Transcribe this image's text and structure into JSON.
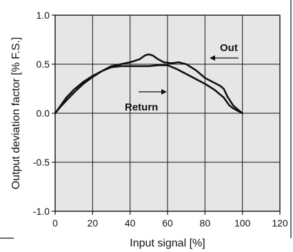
{
  "chart_data": {
    "type": "line",
    "xlabel": "Input signal [%]",
    "ylabel": "Output deviation factor [% F.S.]",
    "xlim": [
      0,
      120
    ],
    "ylim": [
      -1.0,
      1.0
    ],
    "x_ticks": [
      "0",
      "20",
      "40",
      "60",
      "80",
      "100",
      "120"
    ],
    "y_ticks": [
      "1.0",
      "0.5",
      "0.0",
      "-0.5",
      "-1.0"
    ],
    "grid": true,
    "plot_background": "#e6e6e6",
    "line_color": "#111111",
    "series": [
      {
        "name": "Out",
        "x": [
          0,
          3,
          6,
          10,
          15,
          20,
          25,
          30,
          35,
          40,
          45,
          48,
          50,
          52,
          55,
          58,
          62,
          66,
          70,
          75,
          80,
          85,
          88,
          90,
          92,
          95,
          98,
          100
        ],
        "y": [
          0.0,
          0.07,
          0.13,
          0.21,
          0.3,
          0.37,
          0.43,
          0.48,
          0.5,
          0.52,
          0.55,
          0.59,
          0.6,
          0.59,
          0.55,
          0.52,
          0.51,
          0.52,
          0.5,
          0.44,
          0.36,
          0.31,
          0.28,
          0.25,
          0.17,
          0.08,
          0.03,
          0.0
        ]
      },
      {
        "name": "Return",
        "x": [
          0,
          3,
          6,
          10,
          15,
          20,
          25,
          30,
          35,
          40,
          45,
          50,
          55,
          60,
          65,
          70,
          75,
          80,
          85,
          90,
          93,
          95,
          98,
          100
        ],
        "y": [
          0.0,
          0.08,
          0.16,
          0.24,
          0.32,
          0.38,
          0.43,
          0.47,
          0.48,
          0.48,
          0.48,
          0.48,
          0.49,
          0.49,
          0.45,
          0.4,
          0.35,
          0.3,
          0.24,
          0.16,
          0.08,
          0.05,
          0.02,
          0.0
        ]
      }
    ],
    "annotations": [
      {
        "text": "Out",
        "series": "Out",
        "arrow_direction": "left"
      },
      {
        "text": "Return",
        "series": "Return",
        "arrow_direction": "right"
      }
    ]
  }
}
